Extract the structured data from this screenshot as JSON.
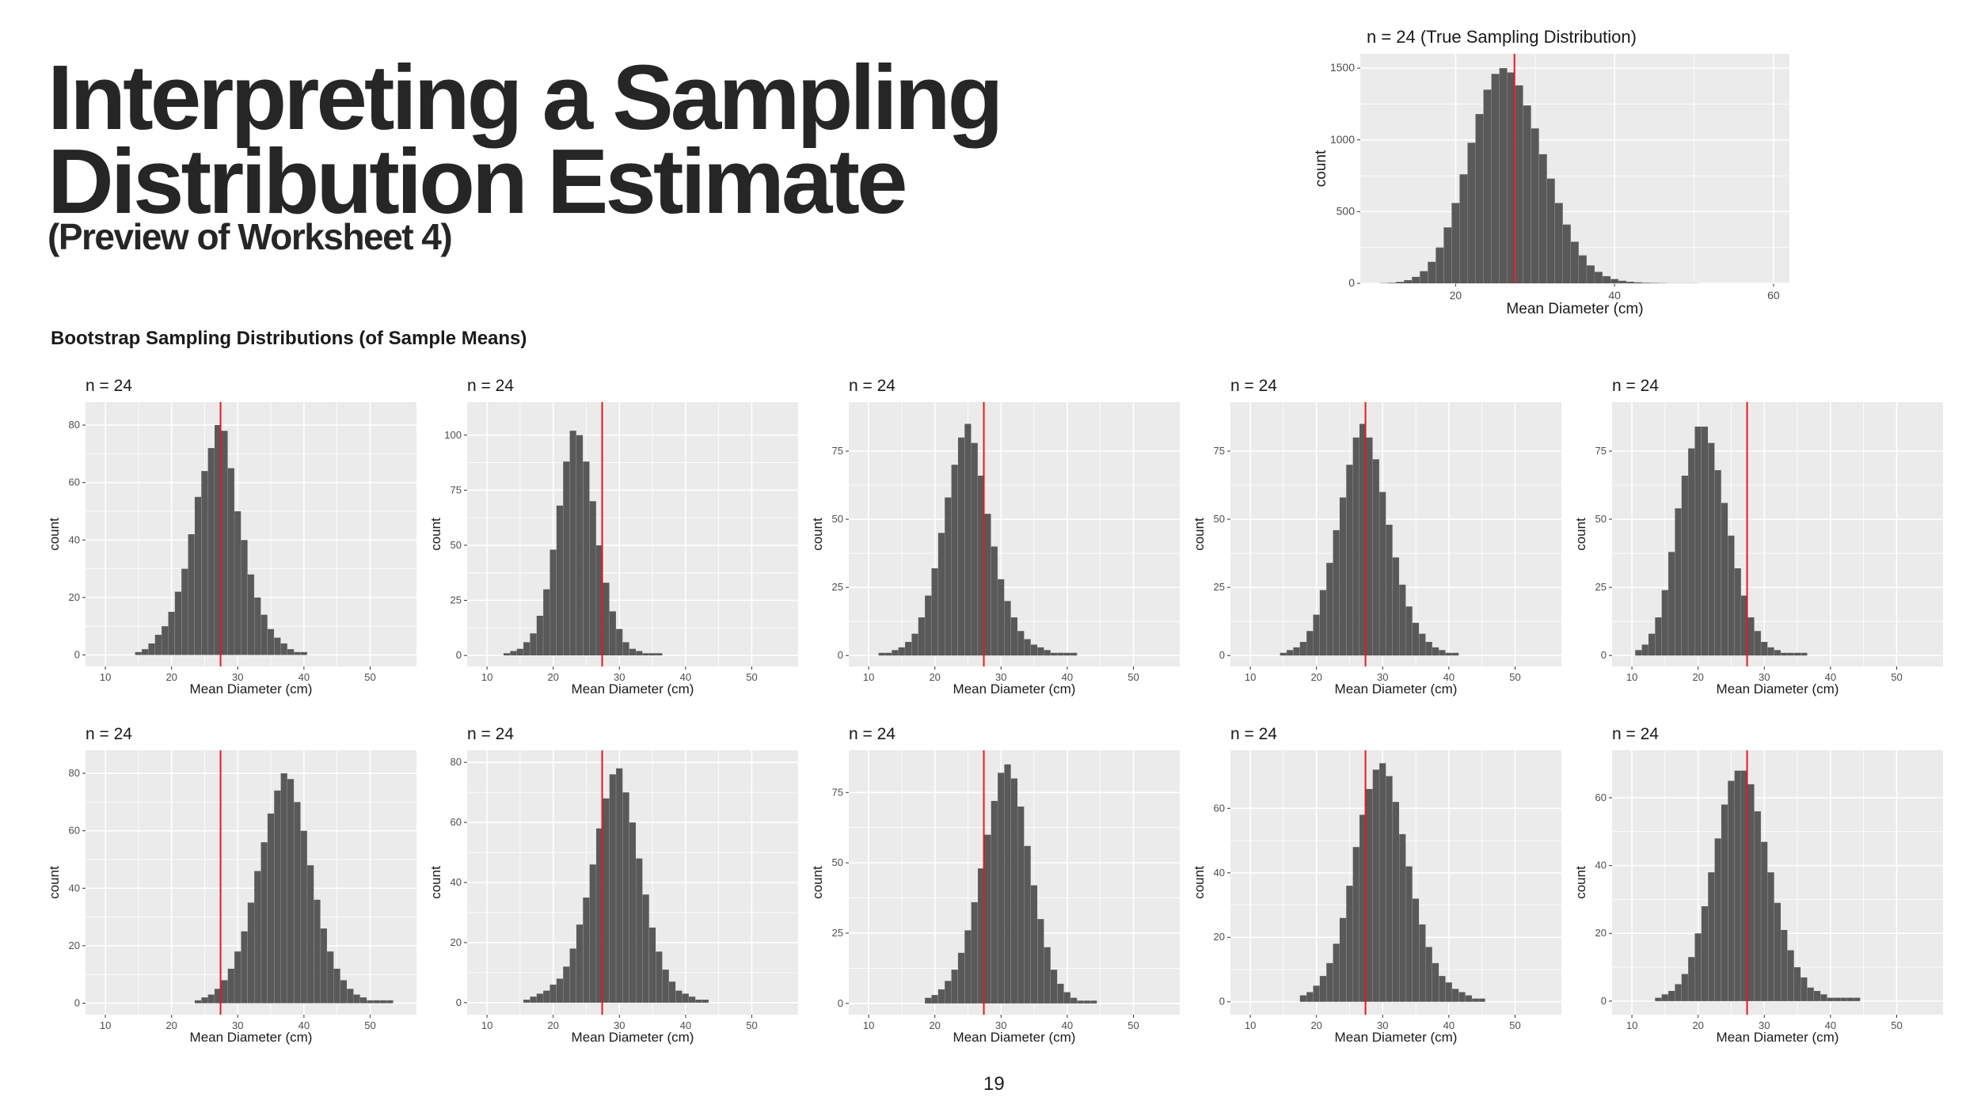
{
  "slide": {
    "title_line1": "Interpreting a Sampling",
    "title_line2": "Distribution Estimate",
    "subtitle": "(Preview of Worksheet 4)",
    "section_heading": "Bootstrap Sampling Distributions (of Sample Means)",
    "page_number": "19"
  },
  "colors": {
    "panel_bg": "#EBEBEB",
    "grid": "#FFFFFF",
    "bar": "#595959",
    "ref_line": "#E41A1C",
    "text": "#1A1A1A"
  },
  "chart_data": [
    {
      "type": "bar",
      "title": "n = 24 (True Sampling Distribution)",
      "xlabel": "Mean Diameter (cm)",
      "ylabel": "count",
      "xlim": [
        8,
        62
      ],
      "ylim": [
        0,
        1600
      ],
      "xticks": [
        20,
        40,
        60
      ],
      "yticks": [
        0,
        500,
        1000,
        1500
      ],
      "ref_line": 27.4,
      "x": [
        11,
        12,
        13,
        14,
        15,
        16,
        17,
        18,
        19,
        20,
        21,
        22,
        23,
        24,
        25,
        26,
        27,
        28,
        29,
        30,
        31,
        32,
        33,
        34,
        35,
        36,
        37,
        38,
        39,
        40,
        41,
        42,
        43,
        44,
        45,
        46,
        47,
        48,
        49,
        50
      ],
      "values": [
        2,
        4,
        10,
        22,
        45,
        85,
        150,
        250,
        390,
        560,
        760,
        980,
        1180,
        1350,
        1460,
        1500,
        1470,
        1380,
        1240,
        1080,
        900,
        730,
        560,
        410,
        290,
        195,
        125,
        80,
        50,
        30,
        18,
        11,
        7,
        4,
        3,
        2,
        1,
        1,
        1,
        1
      ]
    },
    {
      "type": "bar",
      "title": "n = 24",
      "xlabel": "Mean Diameter (cm)",
      "ylabel": "count",
      "xlim": [
        7,
        57
      ],
      "ylim": [
        -4,
        88
      ],
      "xticks": [
        10,
        20,
        30,
        40,
        50
      ],
      "yticks": [
        0,
        20,
        40,
        60,
        80
      ],
      "ref_line": 27.4,
      "x": [
        15,
        16,
        17,
        18,
        19,
        20,
        21,
        22,
        23,
        24,
        25,
        26,
        27,
        28,
        29,
        30,
        31,
        32,
        33,
        34,
        35,
        36,
        37,
        38,
        39,
        40
      ],
      "values": [
        1,
        2,
        4,
        7,
        10,
        15,
        22,
        30,
        42,
        55,
        64,
        72,
        80,
        78,
        65,
        50,
        40,
        28,
        20,
        14,
        9,
        6,
        4,
        2,
        1,
        1
      ]
    },
    {
      "type": "bar",
      "title": "n = 24",
      "xlabel": "Mean Diameter (cm)",
      "ylabel": "count",
      "xlim": [
        7,
        57
      ],
      "ylim": [
        -5,
        115
      ],
      "xticks": [
        10,
        20,
        30,
        40,
        50
      ],
      "yticks": [
        0,
        25,
        50,
        75,
        100
      ],
      "ref_line": 27.4,
      "x": [
        13,
        14,
        15,
        16,
        17,
        18,
        19,
        20,
        21,
        22,
        23,
        24,
        25,
        26,
        27,
        28,
        29,
        30,
        31,
        32,
        33,
        34,
        35,
        36
      ],
      "values": [
        1,
        2,
        3,
        6,
        10,
        18,
        30,
        48,
        68,
        88,
        102,
        100,
        88,
        70,
        50,
        33,
        20,
        12,
        6,
        3,
        2,
        1,
        1,
        1
      ]
    },
    {
      "type": "bar",
      "title": "n = 24",
      "xlabel": "Mean Diameter (cm)",
      "ylabel": "count",
      "xlim": [
        7,
        57
      ],
      "ylim": [
        -4,
        93
      ],
      "xticks": [
        10,
        20,
        30,
        40,
        50
      ],
      "yticks": [
        0,
        25,
        50,
        75
      ],
      "ref_line": 27.4,
      "x": [
        12,
        13,
        14,
        15,
        16,
        17,
        18,
        19,
        20,
        21,
        22,
        23,
        24,
        25,
        26,
        27,
        28,
        29,
        30,
        31,
        32,
        33,
        34,
        35,
        36,
        37,
        38,
        39,
        40,
        41
      ],
      "values": [
        1,
        1,
        2,
        3,
        5,
        8,
        14,
        22,
        32,
        45,
        58,
        70,
        80,
        85,
        78,
        66,
        52,
        40,
        28,
        20,
        14,
        9,
        6,
        4,
        3,
        2,
        1,
        1,
        1,
        1
      ]
    },
    {
      "type": "bar",
      "title": "n = 24",
      "xlabel": "Mean Diameter (cm)",
      "ylabel": "count",
      "xlim": [
        7,
        57
      ],
      "ylim": [
        -4,
        93
      ],
      "xticks": [
        10,
        20,
        30,
        40,
        50
      ],
      "yticks": [
        0,
        25,
        50,
        75
      ],
      "ref_line": 27.4,
      "x": [
        15,
        16,
        17,
        18,
        19,
        20,
        21,
        22,
        23,
        24,
        25,
        26,
        27,
        28,
        29,
        30,
        31,
        32,
        33,
        34,
        35,
        36,
        37,
        38,
        39,
        40,
        41
      ],
      "values": [
        1,
        2,
        3,
        5,
        9,
        15,
        24,
        34,
        46,
        58,
        70,
        80,
        85,
        80,
        72,
        60,
        48,
        36,
        26,
        18,
        12,
        8,
        5,
        3,
        2,
        1,
        1
      ]
    },
    {
      "type": "bar",
      "title": "n = 24",
      "xlabel": "Mean Diameter (cm)",
      "ylabel": "count",
      "xlim": [
        7,
        57
      ],
      "ylim": [
        -4,
        93
      ],
      "xticks": [
        10,
        20,
        30,
        40,
        50
      ],
      "yticks": [
        0,
        25,
        50,
        75
      ],
      "ref_line": 27.4,
      "x": [
        11,
        12,
        13,
        14,
        15,
        16,
        17,
        18,
        19,
        20,
        21,
        22,
        23,
        24,
        25,
        26,
        27,
        28,
        29,
        30,
        31,
        32,
        33,
        34,
        35,
        36
      ],
      "values": [
        2,
        4,
        8,
        14,
        24,
        38,
        54,
        66,
        76,
        84,
        84,
        78,
        68,
        56,
        44,
        32,
        22,
        14,
        9,
        5,
        3,
        2,
        1,
        1,
        1,
        1
      ]
    },
    {
      "type": "bar",
      "title": "n = 24",
      "xlabel": "Mean Diameter (cm)",
      "ylabel": "count",
      "xlim": [
        7,
        57
      ],
      "ylim": [
        -4,
        88
      ],
      "xticks": [
        10,
        20,
        30,
        40,
        50
      ],
      "yticks": [
        0,
        20,
        40,
        60,
        80
      ],
      "ref_line": 27.4,
      "x": [
        24,
        25,
        26,
        27,
        28,
        29,
        30,
        31,
        32,
        33,
        34,
        35,
        36,
        37,
        38,
        39,
        40,
        41,
        42,
        43,
        44,
        45,
        46,
        47,
        48,
        49,
        50,
        51,
        52,
        53
      ],
      "values": [
        1,
        2,
        3,
        5,
        8,
        12,
        18,
        25,
        35,
        46,
        56,
        66,
        74,
        80,
        78,
        70,
        60,
        48,
        36,
        26,
        18,
        12,
        8,
        5,
        3,
        2,
        1,
        1,
        1,
        1
      ]
    },
    {
      "type": "bar",
      "title": "n = 24",
      "xlabel": "Mean Diameter (cm)",
      "ylabel": "count",
      "xlim": [
        7,
        57
      ],
      "ylim": [
        -4,
        84
      ],
      "xticks": [
        10,
        20,
        30,
        40,
        50
      ],
      "yticks": [
        0,
        20,
        40,
        60,
        80
      ],
      "ref_line": 27.4,
      "x": [
        16,
        17,
        18,
        19,
        20,
        21,
        22,
        23,
        24,
        25,
        26,
        27,
        28,
        29,
        30,
        31,
        32,
        33,
        34,
        35,
        36,
        37,
        38,
        39,
        40,
        41,
        42,
        43
      ],
      "values": [
        1,
        2,
        3,
        4,
        6,
        8,
        12,
        18,
        26,
        35,
        46,
        58,
        68,
        76,
        78,
        70,
        60,
        48,
        36,
        25,
        17,
        11,
        7,
        4,
        3,
        2,
        1,
        1
      ]
    },
    {
      "type": "bar",
      "title": "n = 24",
      "xlabel": "Mean Diameter (cm)",
      "ylabel": "count",
      "xlim": [
        7,
        57
      ],
      "ylim": [
        -4,
        90
      ],
      "xticks": [
        10,
        20,
        30,
        40,
        50
      ],
      "yticks": [
        0,
        25,
        50,
        75
      ],
      "ref_line": 27.4,
      "x": [
        19,
        20,
        21,
        22,
        23,
        24,
        25,
        26,
        27,
        28,
        29,
        30,
        31,
        32,
        33,
        34,
        35,
        36,
        37,
        38,
        39,
        40,
        41,
        42,
        43,
        44
      ],
      "values": [
        2,
        3,
        5,
        8,
        12,
        18,
        26,
        36,
        48,
        60,
        72,
        82,
        85,
        80,
        70,
        56,
        42,
        30,
        20,
        12,
        7,
        4,
        2,
        1,
        1,
        1
      ]
    },
    {
      "type": "bar",
      "title": "n = 24",
      "xlabel": "Mean Diameter (cm)",
      "ylabel": "count",
      "xlim": [
        7,
        57
      ],
      "ylim": [
        -4,
        78
      ],
      "xticks": [
        10,
        20,
        30,
        40,
        50
      ],
      "yticks": [
        0,
        20,
        40,
        60
      ],
      "ref_line": 27.4,
      "x": [
        18,
        19,
        20,
        21,
        22,
        23,
        24,
        25,
        26,
        27,
        28,
        29,
        30,
        31,
        32,
        33,
        34,
        35,
        36,
        37,
        38,
        39,
        40,
        41,
        42,
        43,
        44,
        45
      ],
      "values": [
        2,
        3,
        5,
        8,
        12,
        18,
        26,
        36,
        48,
        58,
        66,
        72,
        74,
        70,
        62,
        52,
        42,
        32,
        24,
        17,
        12,
        8,
        6,
        4,
        3,
        2,
        1,
        1
      ]
    },
    {
      "type": "bar",
      "title": "n = 24",
      "xlabel": "Mean Diameter (cm)",
      "ylabel": "count",
      "xlim": [
        7,
        57
      ],
      "ylim": [
        -4,
        74
      ],
      "xticks": [
        10,
        20,
        30,
        40,
        50
      ],
      "yticks": [
        0,
        20,
        40,
        60
      ],
      "ref_line": 27.4,
      "x": [
        14,
        15,
        16,
        17,
        18,
        19,
        20,
        21,
        22,
        23,
        24,
        25,
        26,
        27,
        28,
        29,
        30,
        31,
        32,
        33,
        34,
        35,
        36,
        37,
        38,
        39,
        40,
        41,
        42,
        43,
        44
      ],
      "values": [
        1,
        2,
        3,
        5,
        8,
        13,
        20,
        28,
        38,
        48,
        58,
        65,
        68,
        68,
        64,
        56,
        47,
        38,
        29,
        21,
        15,
        10,
        7,
        4,
        3,
        2,
        1,
        1,
        1,
        1,
        1
      ]
    }
  ]
}
